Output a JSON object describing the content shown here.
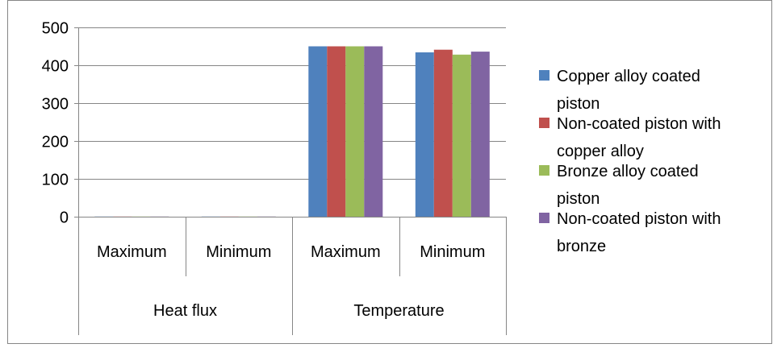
{
  "chart_data": {
    "type": "bar",
    "title": "",
    "xlabel": "",
    "ylabel": "",
    "ylim": [
      0,
      500
    ],
    "yticks": [
      0,
      100,
      200,
      300,
      400,
      500
    ],
    "grid": true,
    "legend_position": "right",
    "groups": [
      {
        "label": "Heat flux",
        "categories": [
          "Maximum",
          "Minimum"
        ]
      },
      {
        "label": "Temperature",
        "categories": [
          "Maximum",
          "Minimum"
        ]
      }
    ],
    "categories": [
      "Heat flux / Maximum",
      "Heat flux / Minimum",
      "Temperature / Maximum",
      "Temperature / Minimum"
    ],
    "series": [
      {
        "name": "Copper alloy coated piston",
        "legend_lines": [
          "Copper alloy coated",
          "piston"
        ],
        "color": "#4F81BD",
        "values": [
          0.5,
          0.5,
          450,
          434
        ]
      },
      {
        "name": "Non-coated piston with copper alloy",
        "legend_lines": [
          "Non-coated piston with",
          "copper alloy"
        ],
        "color": "#C0504D",
        "values": [
          0.5,
          0.5,
          450,
          441
        ]
      },
      {
        "name": "Bronze alloy coated piston",
        "legend_lines": [
          "Bronze alloy coated",
          "piston"
        ],
        "color": "#9BBB59",
        "values": [
          0.5,
          0.5,
          450,
          428
        ]
      },
      {
        "name": "Non-coated piston with bronze",
        "legend_lines": [
          "Non-coated piston with",
          "bronze"
        ],
        "color": "#8064A2",
        "values": [
          0.5,
          0.5,
          450,
          436
        ]
      }
    ]
  }
}
